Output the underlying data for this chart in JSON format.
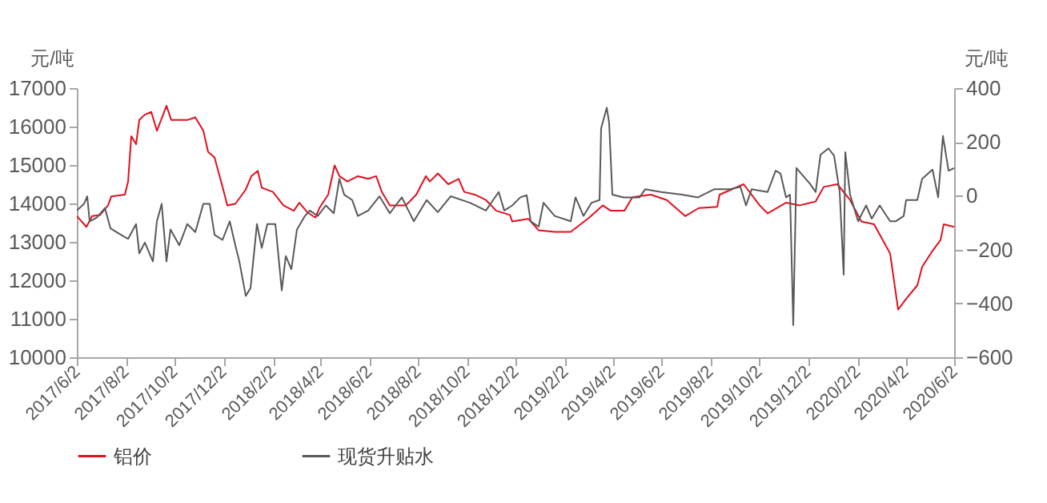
{
  "chart_data": {
    "type": "line",
    "ylabel": "元/吨",
    "y2label": "元/吨",
    "grid": false,
    "legend": "bottom",
    "line_style": "solid",
    "marker": "none",
    "xlim": [
      "2017-06-02",
      "2020-06-02"
    ],
    "xticks": [
      {
        "value": "2017-06-02",
        "label": "2017/6/2"
      },
      {
        "value": "2017-08-02",
        "label": "2017/8/2"
      },
      {
        "value": "2017-10-02",
        "label": "2017/10/2"
      },
      {
        "value": "2017-12-02",
        "label": "2017/12/2"
      },
      {
        "value": "2018-02-02",
        "label": "2018/2/2"
      },
      {
        "value": "2018-04-02",
        "label": "2018/4/2"
      },
      {
        "value": "2018-06-02",
        "label": "2018/6/2"
      },
      {
        "value": "2018-08-02",
        "label": "2018/8/2"
      },
      {
        "value": "2018-10-02",
        "label": "2018/10/2"
      },
      {
        "value": "2018-12-02",
        "label": "2018/12/2"
      },
      {
        "value": "2019-02-02",
        "label": "2019/2/2"
      },
      {
        "value": "2019-04-02",
        "label": "2019/4/2"
      },
      {
        "value": "2019-06-02",
        "label": "2019/6/2"
      },
      {
        "value": "2019-08-02",
        "label": "2019/8/2"
      },
      {
        "value": "2019-10-02",
        "label": "2019/10/2"
      },
      {
        "value": "2019-12-02",
        "label": "2019/12/2"
      },
      {
        "value": "2020-02-02",
        "label": "2020/2/2"
      },
      {
        "value": "2020-04-02",
        "label": "2020/4/2"
      },
      {
        "value": "2020-06-02",
        "label": "2020/6/2"
      }
    ],
    "ylim": [
      10000,
      17000
    ],
    "yticks": [
      10000,
      11000,
      12000,
      13000,
      14000,
      15000,
      16000,
      17000
    ],
    "y2lim": [
      -600,
      400
    ],
    "y2ticks": [
      -600,
      -400,
      -200,
      0,
      200,
      400
    ],
    "series": [
      {
        "name": "铝价",
        "color": "#e0101e",
        "x": [
          "2017-06-02",
          "2017-06-14",
          "2017-06-21",
          "2017-07-01",
          "2017-07-11",
          "2017-07-15",
          "2017-08-01",
          "2017-08-05",
          "2017-08-09",
          "2017-08-15",
          "2017-08-19",
          "2017-08-26",
          "2017-09-03",
          "2017-09-10",
          "2017-09-22",
          "2017-09-28",
          "2017-10-18",
          "2017-10-28",
          "2017-11-07",
          "2017-11-13",
          "2017-11-21",
          "2017-12-01",
          "2017-12-07",
          "2017-12-17",
          "2017-12-30",
          "2018-01-06",
          "2018-01-14",
          "2018-01-19",
          "2018-02-02",
          "2018-02-15",
          "2018-02-28",
          "2018-03-07",
          "2018-03-17",
          "2018-03-27",
          "2018-04-01",
          "2018-04-12",
          "2018-04-20",
          "2018-04-26",
          "2018-05-06",
          "2018-05-19",
          "2018-06-01",
          "2018-06-11",
          "2018-06-18",
          "2018-06-28",
          "2018-07-18",
          "2018-07-31",
          "2018-08-12",
          "2018-08-17",
          "2018-08-27",
          "2018-09-09",
          "2018-09-22",
          "2018-09-29",
          "2018-10-12",
          "2018-10-26",
          "2018-11-08",
          "2018-11-25",
          "2018-11-28",
          "2018-12-18",
          "2018-12-31",
          "2019-01-20",
          "2019-02-09",
          "2019-03-04",
          "2019-03-21",
          "2019-03-31",
          "2019-04-17",
          "2019-04-27",
          "2019-05-20",
          "2019-06-09",
          "2019-07-02",
          "2019-07-19",
          "2019-08-11",
          "2019-08-14",
          "2019-09-13",
          "2019-10-03",
          "2019-10-13",
          "2019-11-05",
          "2019-11-22",
          "2019-12-12",
          "2019-12-22",
          "2020-01-08",
          "2020-01-24",
          "2020-02-07",
          "2020-02-23",
          "2020-03-14",
          "2020-03-24",
          "2020-04-03",
          "2020-04-17",
          "2020-04-23",
          "2020-05-06",
          "2020-05-16",
          "2020-05-20",
          "2020-06-02"
        ],
        "values": [
          13670,
          13390,
          13670,
          13700,
          13950,
          14180,
          14230,
          14570,
          15750,
          15540,
          16170,
          16310,
          16380,
          15890,
          16540,
          16170,
          16170,
          16240,
          15890,
          15340,
          15200,
          14430,
          13950,
          13990,
          14360,
          14710,
          14850,
          14410,
          14300,
          13950,
          13810,
          14020,
          13770,
          13630,
          13880,
          14230,
          14990,
          14710,
          14570,
          14710,
          14640,
          14710,
          14300,
          13950,
          13950,
          14230,
          14710,
          14570,
          14780,
          14500,
          14640,
          14300,
          14230,
          14090,
          13810,
          13700,
          13530,
          13600,
          13300,
          13260,
          13260,
          13630,
          13950,
          13810,
          13810,
          14160,
          14230,
          14090,
          13670,
          13880,
          13910,
          14230,
          14500,
          13950,
          13740,
          14020,
          13950,
          14050,
          14430,
          14500,
          14090,
          13530,
          13460,
          12700,
          11240,
          11520,
          11870,
          12350,
          12770,
          13050,
          13460,
          13390
        ]
      },
      {
        "name": "现货升贴水",
        "color": "#595959",
        "axis": "y2",
        "x": [
          "2017-06-02",
          "2017-06-11",
          "2017-06-15",
          "2017-06-18",
          "2017-06-27",
          "2017-07-07",
          "2017-07-14",
          "2017-07-27",
          "2017-08-05",
          "2017-08-15",
          "2017-08-19",
          "2017-08-26",
          "2017-09-05",
          "2017-09-10",
          "2017-09-16",
          "2017-09-22",
          "2017-09-27",
          "2017-10-08",
          "2017-10-18",
          "2017-10-28",
          "2017-11-07",
          "2017-11-15",
          "2017-11-21",
          "2017-12-01",
          "2017-12-10",
          "2017-12-17",
          "2017-12-22",
          "2017-12-30",
          "2018-01-05",
          "2018-01-13",
          "2018-01-19",
          "2018-01-26",
          "2018-02-05",
          "2018-02-13",
          "2018-02-18",
          "2018-02-25",
          "2018-03-04",
          "2018-03-14",
          "2018-03-20",
          "2018-03-30",
          "2018-04-09",
          "2018-04-19",
          "2018-04-26",
          "2018-05-02",
          "2018-05-12",
          "2018-05-19",
          "2018-06-01",
          "2018-06-15",
          "2018-06-28",
          "2018-07-13",
          "2018-07-28",
          "2018-08-13",
          "2018-08-27",
          "2018-09-12",
          "2018-10-06",
          "2018-10-26",
          "2018-11-11",
          "2018-11-18",
          "2018-11-28",
          "2018-12-08",
          "2018-12-16",
          "2018-12-21",
          "2018-12-31",
          "2019-01-06",
          "2019-01-20",
          "2019-02-09",
          "2019-02-15",
          "2019-02-25",
          "2019-03-07",
          "2019-03-17",
          "2019-03-19",
          "2019-03-26",
          "2019-03-29",
          "2019-04-02",
          "2019-04-16",
          "2019-05-06",
          "2019-05-13",
          "2019-06-02",
          "2019-06-28",
          "2019-07-18",
          "2019-08-07",
          "2019-08-27",
          "2019-09-09",
          "2019-09-16",
          "2019-09-23",
          "2019-10-13",
          "2019-10-23",
          "2019-10-29",
          "2019-11-05",
          "2019-11-10",
          "2019-11-14",
          "2019-11-18",
          "2019-12-05",
          "2019-12-12",
          "2019-12-18",
          "2019-12-28",
          "2020-01-04",
          "2020-01-11",
          "2020-01-16",
          "2020-01-18",
          "2020-01-24",
          "2020-02-03",
          "2020-02-13",
          "2020-02-20",
          "2020-03-01",
          "2020-03-14",
          "2020-03-21",
          "2020-03-31",
          "2020-04-03",
          "2020-04-17",
          "2020-04-23",
          "2020-05-06",
          "2020-05-13",
          "2020-05-19",
          "2020-05-26",
          "2020-06-02"
        ],
        "values": [
          -55,
          -30,
          -2,
          -95,
          -81,
          -46,
          -121,
          -145,
          -160,
          -105,
          -214,
          -174,
          -244,
          -95,
          -30,
          -244,
          -125,
          -184,
          -105,
          -135,
          -30,
          -30,
          -145,
          -164,
          -95,
          -184,
          -244,
          -372,
          -343,
          -105,
          -194,
          -105,
          -105,
          -352,
          -224,
          -273,
          -125,
          -75,
          -55,
          -75,
          -36,
          -65,
          63,
          4,
          -16,
          -75,
          -55,
          -2,
          -65,
          -6,
          -95,
          -16,
          -61,
          -2,
          -26,
          -55,
          14,
          -55,
          -36,
          -6,
          2,
          -95,
          -115,
          -26,
          -75,
          -95,
          -6,
          -75,
          -26,
          -16,
          251,
          327,
          271,
          4,
          -6,
          -6,
          24,
          14,
          4,
          -6,
          24,
          24,
          33,
          -36,
          24,
          14,
          93,
          83,
          -6,
          4,
          -481,
          103,
          44,
          14,
          152,
          176,
          149,
          14,
          -293,
          162,
          4,
          -95,
          -36,
          -85,
          -36,
          -95,
          -95,
          -75,
          -16,
          -16,
          63,
          97,
          -6,
          222,
          93,
          103
        ]
      }
    ]
  }
}
